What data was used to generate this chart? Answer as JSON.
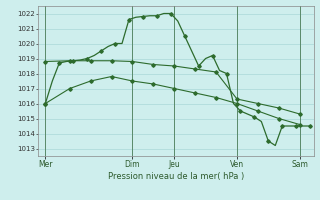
{
  "title": "Pression niveau de la mer( hPa )",
  "bg_color": "#ceeeed",
  "grid_color": "#aad8d8",
  "line_color": "#2d6b2d",
  "vline_color": "#5a8a6a",
  "ylim": [
    1012.5,
    1022.5
  ],
  "yticks": [
    1013,
    1014,
    1015,
    1016,
    1017,
    1018,
    1019,
    1020,
    1021,
    1022
  ],
  "xlim": [
    -0.5,
    39
  ],
  "x_day_labels": [
    "Mer",
    "Dim",
    "Jeu",
    "Ven",
    "Sam"
  ],
  "x_day_positions": [
    0.5,
    13,
    19,
    28,
    37
  ],
  "x_vlines": [
    0.5,
    13,
    19,
    28,
    37
  ],
  "series1_x": [
    0.5,
    1.5,
    2.5,
    3.5,
    4.5,
    5.5,
    6.5,
    7.5,
    8.5,
    9.5,
    10.5,
    11.5,
    12.5,
    13.5,
    14.5,
    15.5,
    16.5,
    17.5,
    18.5,
    19.5,
    20.5,
    21.5,
    22.5,
    23.5,
    24.5,
    25.5,
    26.5,
    27.5,
    28.5,
    29.5,
    30.5,
    31.5,
    32.5,
    33.5,
    34.5,
    35.5,
    36.5,
    37.5,
    38.5
  ],
  "series1_y": [
    1016.0,
    1017.5,
    1018.7,
    1018.8,
    1018.85,
    1018.9,
    1019.0,
    1019.2,
    1019.5,
    1019.8,
    1020.0,
    1020.0,
    1021.6,
    1021.75,
    1021.8,
    1021.85,
    1021.85,
    1022.0,
    1022.0,
    1021.5,
    1020.5,
    1019.5,
    1018.5,
    1019.0,
    1019.2,
    1018.2,
    1018.0,
    1016.0,
    1015.5,
    1015.3,
    1015.1,
    1014.8,
    1013.5,
    1013.2,
    1014.5,
    1014.5,
    1014.5,
    1014.5,
    1014.5
  ],
  "series2_x": [
    0.5,
    4,
    7,
    10,
    13,
    16,
    19,
    22,
    25,
    28,
    31,
    34,
    37
  ],
  "series2_y": [
    1018.8,
    1018.85,
    1018.85,
    1018.85,
    1018.8,
    1018.6,
    1018.5,
    1018.3,
    1018.1,
    1016.3,
    1016.0,
    1015.7,
    1015.3
  ],
  "series3_x": [
    0.5,
    4,
    7,
    10,
    13,
    16,
    19,
    22,
    25,
    28,
    31,
    34,
    37
  ],
  "series3_y": [
    1016.0,
    1017.0,
    1017.5,
    1017.8,
    1017.5,
    1017.3,
    1017.0,
    1016.7,
    1016.4,
    1016.0,
    1015.5,
    1015.0,
    1014.6
  ]
}
